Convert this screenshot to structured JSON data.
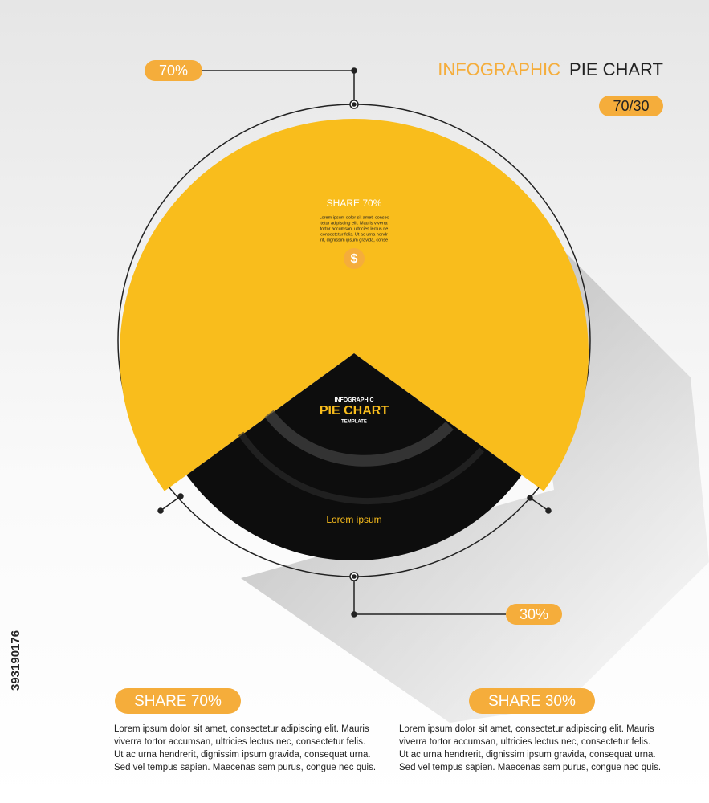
{
  "chart_data": {
    "type": "pie",
    "title_highlight": "INFOGRAPHIC",
    "title": "PIE CHART",
    "subtitle": "70/30",
    "values": [
      70,
      30
    ],
    "value_labels": [
      "70%",
      "30%"
    ],
    "colors": [
      "#f9bd1c",
      "#0d0d0d"
    ],
    "slice_texts": {
      "heading": "SHARE 70%",
      "body": [
        "Lorem ipsum dolor sit amet, consec",
        "tetur adipiscing elit. Mauris viverra",
        "tortor accumsan, ultricies lectus ne",
        "consectetur felis. Ut ac urna hendr",
        "rit, dignissim ipsum gravida, conse"
      ],
      "icon": "$",
      "dark_label": "Lorem ipsum"
    },
    "center": {
      "top": "INFOGRAPHIC",
      "main": "PIE CHART",
      "bottom": "TEMPLATE"
    },
    "panels": [
      {
        "title": "SHARE 70%",
        "lines": [
          "Lorem ipsum dolor sit amet, consectetur adipiscing elit. Mauris",
          "viverra tortor accumsan, ultricies lectus nec, consectetur felis.",
          "Ut ac urna hendrerit, dignissim ipsum gravida, consequat urna.",
          "Sed vel tempus sapien. Maecenas sem purus, congue nec quis."
        ]
      },
      {
        "title": "SHARE 30%",
        "lines": [
          "Lorem ipsum dolor sit amet, consectetur adipiscing elit. Mauris",
          "viverra tortor accumsan, ultricies lectus nec, consectetur felis.",
          "Ut ac urna hendrerit, dignissim ipsum gravida, consequat urna.",
          "Sed vel tempus sapien. Maecenas sem purus, congue nec quis."
        ]
      }
    ],
    "stock_id": "393190176"
  }
}
